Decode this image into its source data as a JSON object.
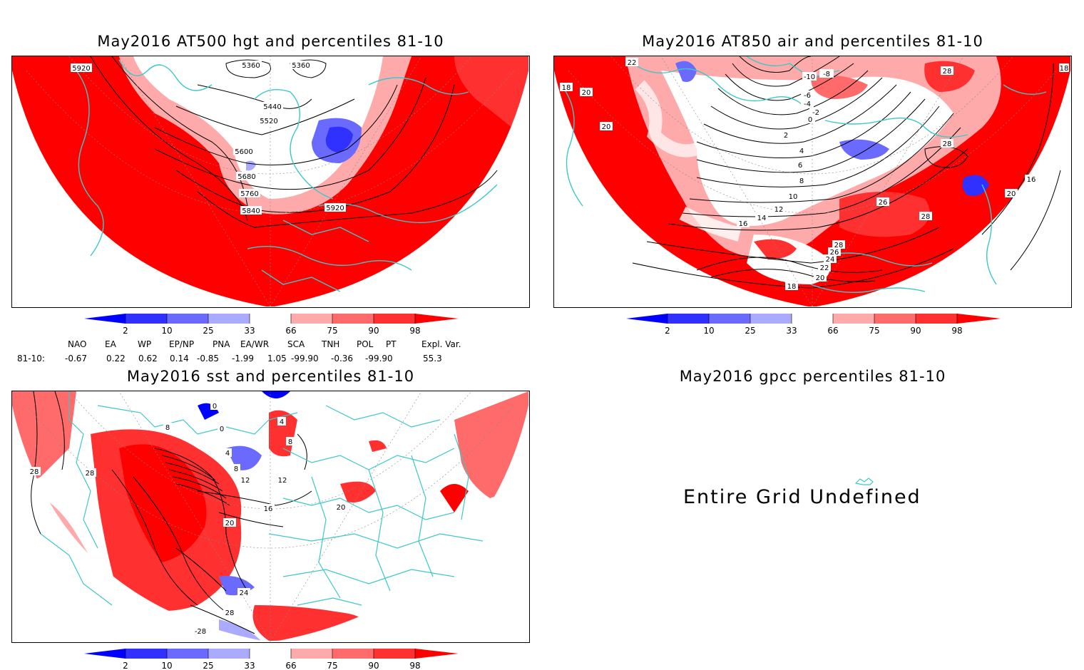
{
  "panels": {
    "hgt": {
      "title": "May2016 AT500 hgt and percentiles 81-10",
      "contour_labels": [
        "5360",
        "5360",
        "5440",
        "5520",
        "5600",
        "5680",
        "5760",
        "5840",
        "5920",
        "5920"
      ]
    },
    "air": {
      "title": "May2016 AT850 air and percentiles 81-10",
      "contour_labels": [
        "-10",
        "-8",
        "-6",
        "-4",
        "-2",
        "0",
        "2",
        "4",
        "6",
        "8",
        "10",
        "12",
        "14",
        "16",
        "18",
        "18",
        "18",
        "20",
        "20",
        "20",
        "22",
        "24",
        "26",
        "26",
        "28",
        "28",
        "28",
        "28",
        "22",
        "20",
        "16"
      ]
    },
    "sst": {
      "title": "May2016 sst and percentiles 81-10",
      "contour_labels": [
        "0",
        "0",
        "4",
        "4",
        "8",
        "8",
        "8",
        "12",
        "12",
        "16",
        "20",
        "20",
        "24",
        "28",
        "28",
        "28",
        "-28"
      ]
    },
    "gpcc": {
      "title": "May2016 gpcc percentiles 81-10",
      "message": "Entire Grid Undefined"
    }
  },
  "colorbar": {
    "labels": [
      "2",
      "10",
      "25",
      "33",
      "66",
      "75",
      "90",
      "98"
    ],
    "colors": {
      "below_2": "#0000ff",
      "c2_10": "#3030ff",
      "c10_25": "#6a6aff",
      "c25_33": "#aaaaff",
      "neutral": "#ffffff",
      "c66_75": "#ffaaaa",
      "c75_90": "#ff6a6a",
      "c90_98": "#ff3030",
      "above_98": "#ff0000"
    }
  },
  "teleconnections": {
    "row_label": "81-10:",
    "headers": [
      "NAO",
      "EA",
      "WP",
      "EP/NP",
      "PNA",
      "EA/WR",
      "SCA",
      "TNH",
      "POL",
      "PT",
      "Expl. Var."
    ],
    "values": [
      "-0.67",
      "0.22",
      "0.62",
      "0.14",
      "-0.85",
      "-1.99",
      "1.05",
      "-99.90",
      "-0.36",
      "-99.90",
      "55.3"
    ]
  },
  "colors": {
    "coast": "#3cc8c8",
    "contour": "#000000",
    "grid": "#888888"
  }
}
